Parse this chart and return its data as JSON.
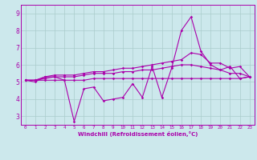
{
  "xlabel": "Windchill (Refroidissement éolien,°C)",
  "background_color": "#cce8ec",
  "grid_color": "#aacccc",
  "line_color": "#aa00aa",
  "x": [
    0,
    1,
    2,
    3,
    4,
    5,
    6,
    7,
    8,
    9,
    10,
    11,
    12,
    13,
    14,
    15,
    16,
    17,
    18,
    19,
    20,
    21,
    22,
    23
  ],
  "y_jagged": [
    5.1,
    5.0,
    5.3,
    5.3,
    5.1,
    2.7,
    4.6,
    4.7,
    3.9,
    4.0,
    4.1,
    4.9,
    4.1,
    5.9,
    4.1,
    5.8,
    8.0,
    8.8,
    6.8,
    6.0,
    5.7,
    5.9,
    5.2,
    5.3
  ],
  "y_upper": [
    5.1,
    5.1,
    5.3,
    5.4,
    5.4,
    5.4,
    5.5,
    5.6,
    5.6,
    5.7,
    5.8,
    5.8,
    5.9,
    6.0,
    6.1,
    6.2,
    6.3,
    6.7,
    6.6,
    6.1,
    6.1,
    5.8,
    5.9,
    5.3
  ],
  "y_middle": [
    5.1,
    5.1,
    5.2,
    5.3,
    5.3,
    5.3,
    5.4,
    5.5,
    5.5,
    5.5,
    5.6,
    5.6,
    5.7,
    5.7,
    5.8,
    5.9,
    6.0,
    6.0,
    5.9,
    5.8,
    5.7,
    5.5,
    5.5,
    5.3
  ],
  "y_flat": [
    5.1,
    5.1,
    5.1,
    5.1,
    5.1,
    5.1,
    5.1,
    5.2,
    5.2,
    5.2,
    5.2,
    5.2,
    5.2,
    5.2,
    5.2,
    5.2,
    5.2,
    5.2,
    5.2,
    5.2,
    5.2,
    5.2,
    5.2,
    5.3
  ],
  "ylim": [
    2.5,
    9.5
  ],
  "yticks": [
    3,
    4,
    5,
    6,
    7,
    8,
    9
  ],
  "xticks": [
    0,
    1,
    2,
    3,
    4,
    5,
    6,
    7,
    8,
    9,
    10,
    11,
    12,
    13,
    14,
    15,
    16,
    17,
    18,
    19,
    20,
    21,
    22,
    23
  ]
}
